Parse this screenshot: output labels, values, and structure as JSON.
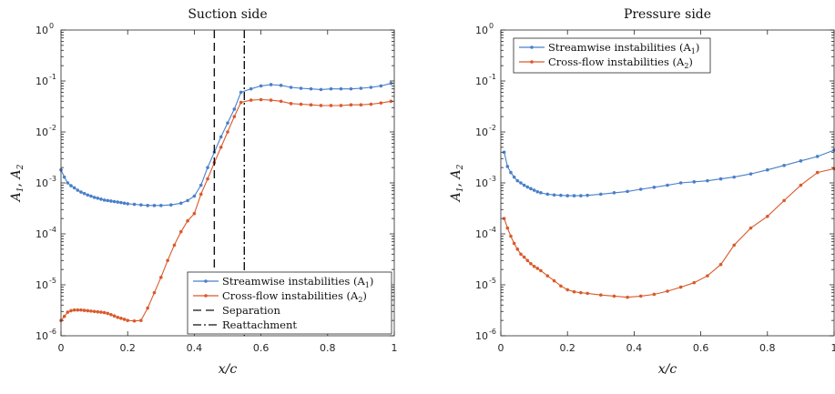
{
  "colors": {
    "streamwise": "#4a7fc9",
    "crossflow": "#d95a2b",
    "axis": "#262626"
  },
  "chart_data": [
    {
      "type": "line",
      "title": "Suction side",
      "xlabel": "x/c",
      "ylabel": "A1, A2",
      "xlim": [
        0,
        1
      ],
      "ylim": [
        1e-06,
        1
      ],
      "yscale": "log",
      "xticks": [
        "0",
        "0.2",
        "0.4",
        "0.6",
        "0.8",
        "1"
      ],
      "yticks": [
        {
          "base": "10",
          "exp": "0"
        },
        {
          "base": "10",
          "exp": "-1"
        },
        {
          "base": "10",
          "exp": "-2"
        },
        {
          "base": "10",
          "exp": "-3"
        },
        {
          "base": "10",
          "exp": "-4"
        },
        {
          "base": "10",
          "exp": "-5"
        },
        {
          "base": "10",
          "exp": "-6"
        }
      ],
      "legend_position": "bottom-right",
      "series": [
        {
          "name": "Streamwise instabilities (A1)",
          "color": "#4a7fc9",
          "x": [
            0.0,
            0.01,
            0.02,
            0.03,
            0.04,
            0.05,
            0.06,
            0.07,
            0.08,
            0.09,
            0.1,
            0.11,
            0.12,
            0.13,
            0.14,
            0.15,
            0.16,
            0.17,
            0.18,
            0.19,
            0.2,
            0.22,
            0.24,
            0.26,
            0.28,
            0.3,
            0.33,
            0.36,
            0.38,
            0.4,
            0.42,
            0.44,
            0.46,
            0.48,
            0.5,
            0.52,
            0.54,
            0.57,
            0.6,
            0.63,
            0.66,
            0.69,
            0.72,
            0.75,
            0.78,
            0.81,
            0.84,
            0.87,
            0.9,
            0.93,
            0.96,
            0.99
          ],
          "values": [
            0.0018,
            0.0013,
            0.001,
            0.00088,
            0.0008,
            0.00072,
            0.00066,
            0.00062,
            0.00058,
            0.00055,
            0.00052,
            0.0005,
            0.00048,
            0.00046,
            0.00045,
            0.00044,
            0.00043,
            0.00042,
            0.00041,
            0.0004,
            0.00039,
            0.00038,
            0.00037,
            0.00036,
            0.00036,
            0.00036,
            0.00037,
            0.0004,
            0.00045,
            0.00055,
            0.0009,
            0.002,
            0.004,
            0.008,
            0.015,
            0.028,
            0.06,
            0.07,
            0.08,
            0.085,
            0.082,
            0.075,
            0.072,
            0.07,
            0.068,
            0.07,
            0.07,
            0.07,
            0.072,
            0.075,
            0.08,
            0.09
          ]
        },
        {
          "name": "Cross-flow instabilities (A2)",
          "color": "#d95a2b",
          "x": [
            0.0,
            0.01,
            0.02,
            0.03,
            0.04,
            0.05,
            0.06,
            0.07,
            0.08,
            0.09,
            0.1,
            0.11,
            0.12,
            0.13,
            0.14,
            0.15,
            0.16,
            0.17,
            0.18,
            0.19,
            0.2,
            0.22,
            0.24,
            0.26,
            0.28,
            0.3,
            0.32,
            0.34,
            0.36,
            0.38,
            0.4,
            0.42,
            0.44,
            0.46,
            0.48,
            0.5,
            0.52,
            0.54,
            0.57,
            0.6,
            0.63,
            0.66,
            0.69,
            0.72,
            0.75,
            0.78,
            0.81,
            0.84,
            0.87,
            0.9,
            0.93,
            0.96,
            0.99
          ],
          "values": [
            2e-06,
            2.4e-06,
            2.9e-06,
            3.1e-06,
            3.2e-06,
            3.2e-06,
            3.2e-06,
            3.15e-06,
            3.1e-06,
            3.05e-06,
            3e-06,
            2.95e-06,
            2.9e-06,
            2.85e-06,
            2.75e-06,
            2.6e-06,
            2.45e-06,
            2.3e-06,
            2.2e-06,
            2.1e-06,
            2e-06,
            1.95e-06,
            2e-06,
            3.5e-06,
            7e-06,
            1.4e-05,
            3e-05,
            6e-05,
            0.00011,
            0.00018,
            0.00025,
            0.0006,
            0.0012,
            0.0025,
            0.005,
            0.01,
            0.02,
            0.038,
            0.042,
            0.043,
            0.042,
            0.04,
            0.036,
            0.035,
            0.034,
            0.033,
            0.033,
            0.033,
            0.034,
            0.034,
            0.035,
            0.037,
            0.04
          ]
        },
        {
          "name": "Separation",
          "type": "vline",
          "x": 0.46,
          "color": "#111111",
          "dash": "dashed"
        },
        {
          "name": "Reattachment",
          "type": "vline",
          "x": 0.55,
          "color": "#111111",
          "dash": "dashdot"
        }
      ]
    },
    {
      "type": "line",
      "title": "Pressure side",
      "xlabel": "x/c",
      "ylabel": "A1, A2",
      "xlim": [
        0,
        1
      ],
      "ylim": [
        1e-06,
        1
      ],
      "yscale": "log",
      "xticks": [
        "0",
        "0.2",
        "0.4",
        "0.6",
        "0.8",
        "1"
      ],
      "yticks": [
        {
          "base": "10",
          "exp": "0"
        },
        {
          "base": "10",
          "exp": "-1"
        },
        {
          "base": "10",
          "exp": "-2"
        },
        {
          "base": "10",
          "exp": "-3"
        },
        {
          "base": "10",
          "exp": "-4"
        },
        {
          "base": "10",
          "exp": "-5"
        },
        {
          "base": "10",
          "exp": "-6"
        }
      ],
      "legend_position": "top-left",
      "series": [
        {
          "name": "Streamwise instabilities (A1)",
          "color": "#4a7fc9",
          "x": [
            0.01,
            0.02,
            0.03,
            0.04,
            0.05,
            0.06,
            0.07,
            0.08,
            0.09,
            0.1,
            0.11,
            0.12,
            0.14,
            0.16,
            0.18,
            0.2,
            0.22,
            0.24,
            0.26,
            0.3,
            0.34,
            0.38,
            0.42,
            0.46,
            0.5,
            0.54,
            0.58,
            0.62,
            0.66,
            0.7,
            0.75,
            0.8,
            0.85,
            0.9,
            0.95,
            1.0
          ],
          "values": [
            0.004,
            0.0021,
            0.0016,
            0.0013,
            0.0011,
            0.001,
            0.0009,
            0.00083,
            0.00077,
            0.00072,
            0.00067,
            0.00064,
            0.0006,
            0.00058,
            0.00057,
            0.00056,
            0.00056,
            0.00056,
            0.00057,
            0.0006,
            0.00064,
            0.00068,
            0.00075,
            0.00082,
            0.0009,
            0.001,
            0.00105,
            0.0011,
            0.0012,
            0.0013,
            0.0015,
            0.0018,
            0.0022,
            0.0027,
            0.0033,
            0.0044
          ]
        },
        {
          "name": "Cross-flow instabilities (A2)",
          "color": "#d95a2b",
          "x": [
            0.01,
            0.02,
            0.03,
            0.04,
            0.05,
            0.06,
            0.07,
            0.08,
            0.09,
            0.1,
            0.11,
            0.12,
            0.14,
            0.16,
            0.18,
            0.2,
            0.22,
            0.24,
            0.26,
            0.3,
            0.34,
            0.38,
            0.42,
            0.46,
            0.5,
            0.54,
            0.58,
            0.62,
            0.66,
            0.7,
            0.75,
            0.8,
            0.85,
            0.9,
            0.95,
            1.0
          ],
          "values": [
            0.0002,
            0.00013,
            9e-05,
            6.5e-05,
            5e-05,
            4e-05,
            3.5e-05,
            3e-05,
            2.6e-05,
            2.3e-05,
            2.1e-05,
            1.9e-05,
            1.5e-05,
            1.2e-05,
            9.5e-06,
            8e-06,
            7.3e-06,
            7e-06,
            6.8e-06,
            6.3e-06,
            6e-06,
            5.7e-06,
            6e-06,
            6.5e-06,
            7.5e-06,
            9e-06,
            1.1e-05,
            1.5e-05,
            2.5e-05,
            6e-05,
            0.00013,
            0.00022,
            0.00045,
            0.0009,
            0.0016,
            0.0019
          ]
        }
      ]
    }
  ],
  "legends": [
    {
      "entries": [
        {
          "text": "Streamwise instabilities (A",
          "sub": "1",
          "tail": ")",
          "style": "line-marker",
          "color": "#4a7fc9"
        },
        {
          "text": "Cross-flow instabilities (A",
          "sub": "2",
          "tail": ")",
          "style": "line-marker",
          "color": "#d95a2b"
        },
        {
          "text": "Separation",
          "style": "dashed",
          "color": "#111111"
        },
        {
          "text": "Reattachment",
          "style": "dashdot",
          "color": "#111111"
        }
      ]
    },
    {
      "entries": [
        {
          "text": "Streamwise instabilities (A",
          "sub": "1",
          "tail": ")",
          "style": "line-marker",
          "color": "#4a7fc9"
        },
        {
          "text": "Cross-flow instabilities (A",
          "sub": "2",
          "tail": ")",
          "style": "line-marker",
          "color": "#d95a2b"
        }
      ]
    }
  ]
}
